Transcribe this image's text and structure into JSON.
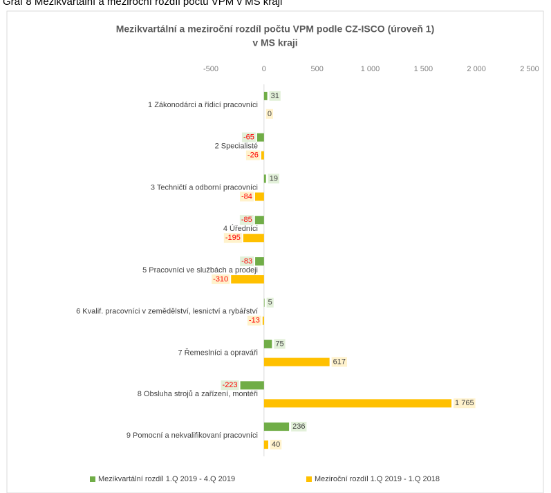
{
  "chart_data": {
    "type": "hbar",
    "caption": "Graf 8      Mezikvartální a meziroční rozdíl počtu VPM v MS kraji",
    "title": [
      "Mezikvartální a meziroční rozdíl počtu VPM podle CZ-ISCO (úroveň 1)",
      "v MS kraji"
    ],
    "categories": [
      "1 Zákonodárci a řídicí pracovníci",
      "2 Specialisté",
      "3 Techničtí a odborní pracovníci",
      "4 Úředníci",
      "5 Pracovníci ve službách a prodeji",
      "6 Kvalif. pracovníci v zemědělství, lesnictví a rybářství",
      "7 Řemeslníci a opraváři",
      "8 Obsluha strojů a zařízení, montéři",
      "9 Pomocní a nekvalifikovaní pracovníci"
    ],
    "series": [
      {
        "name": "Mezikvartální rozdíl 1.Q 2019 - 4.Q 2019",
        "color": "#70ad47",
        "values": [
          31,
          -65,
          19,
          -85,
          -83,
          5,
          75,
          -223,
          236
        ]
      },
      {
        "name": "Meziroční rozdíl 1.Q 2019 - 1.Q 2018",
        "color": "#ffc000",
        "values": [
          0,
          -26,
          -84,
          -195,
          -310,
          -13,
          617,
          1765,
          40
        ],
        "value_labels": [
          "0",
          "-26",
          "-84",
          "-195",
          "-310",
          "-13",
          "617",
          "1 765",
          "40"
        ]
      }
    ],
    "xlim": [
      -500,
      2500
    ],
    "xticks": [
      {
        "value": -500,
        "label": "-500"
      },
      0,
      500,
      {
        "value": 1000,
        "label": "1 000"
      },
      {
        "value": 1500,
        "label": "1 500"
      },
      {
        "value": 2000,
        "label": "2 000"
      },
      {
        "value": 2500,
        "label": "2 500"
      }
    ],
    "negative_label_color": "#ff0000",
    "legend": "bottom"
  }
}
